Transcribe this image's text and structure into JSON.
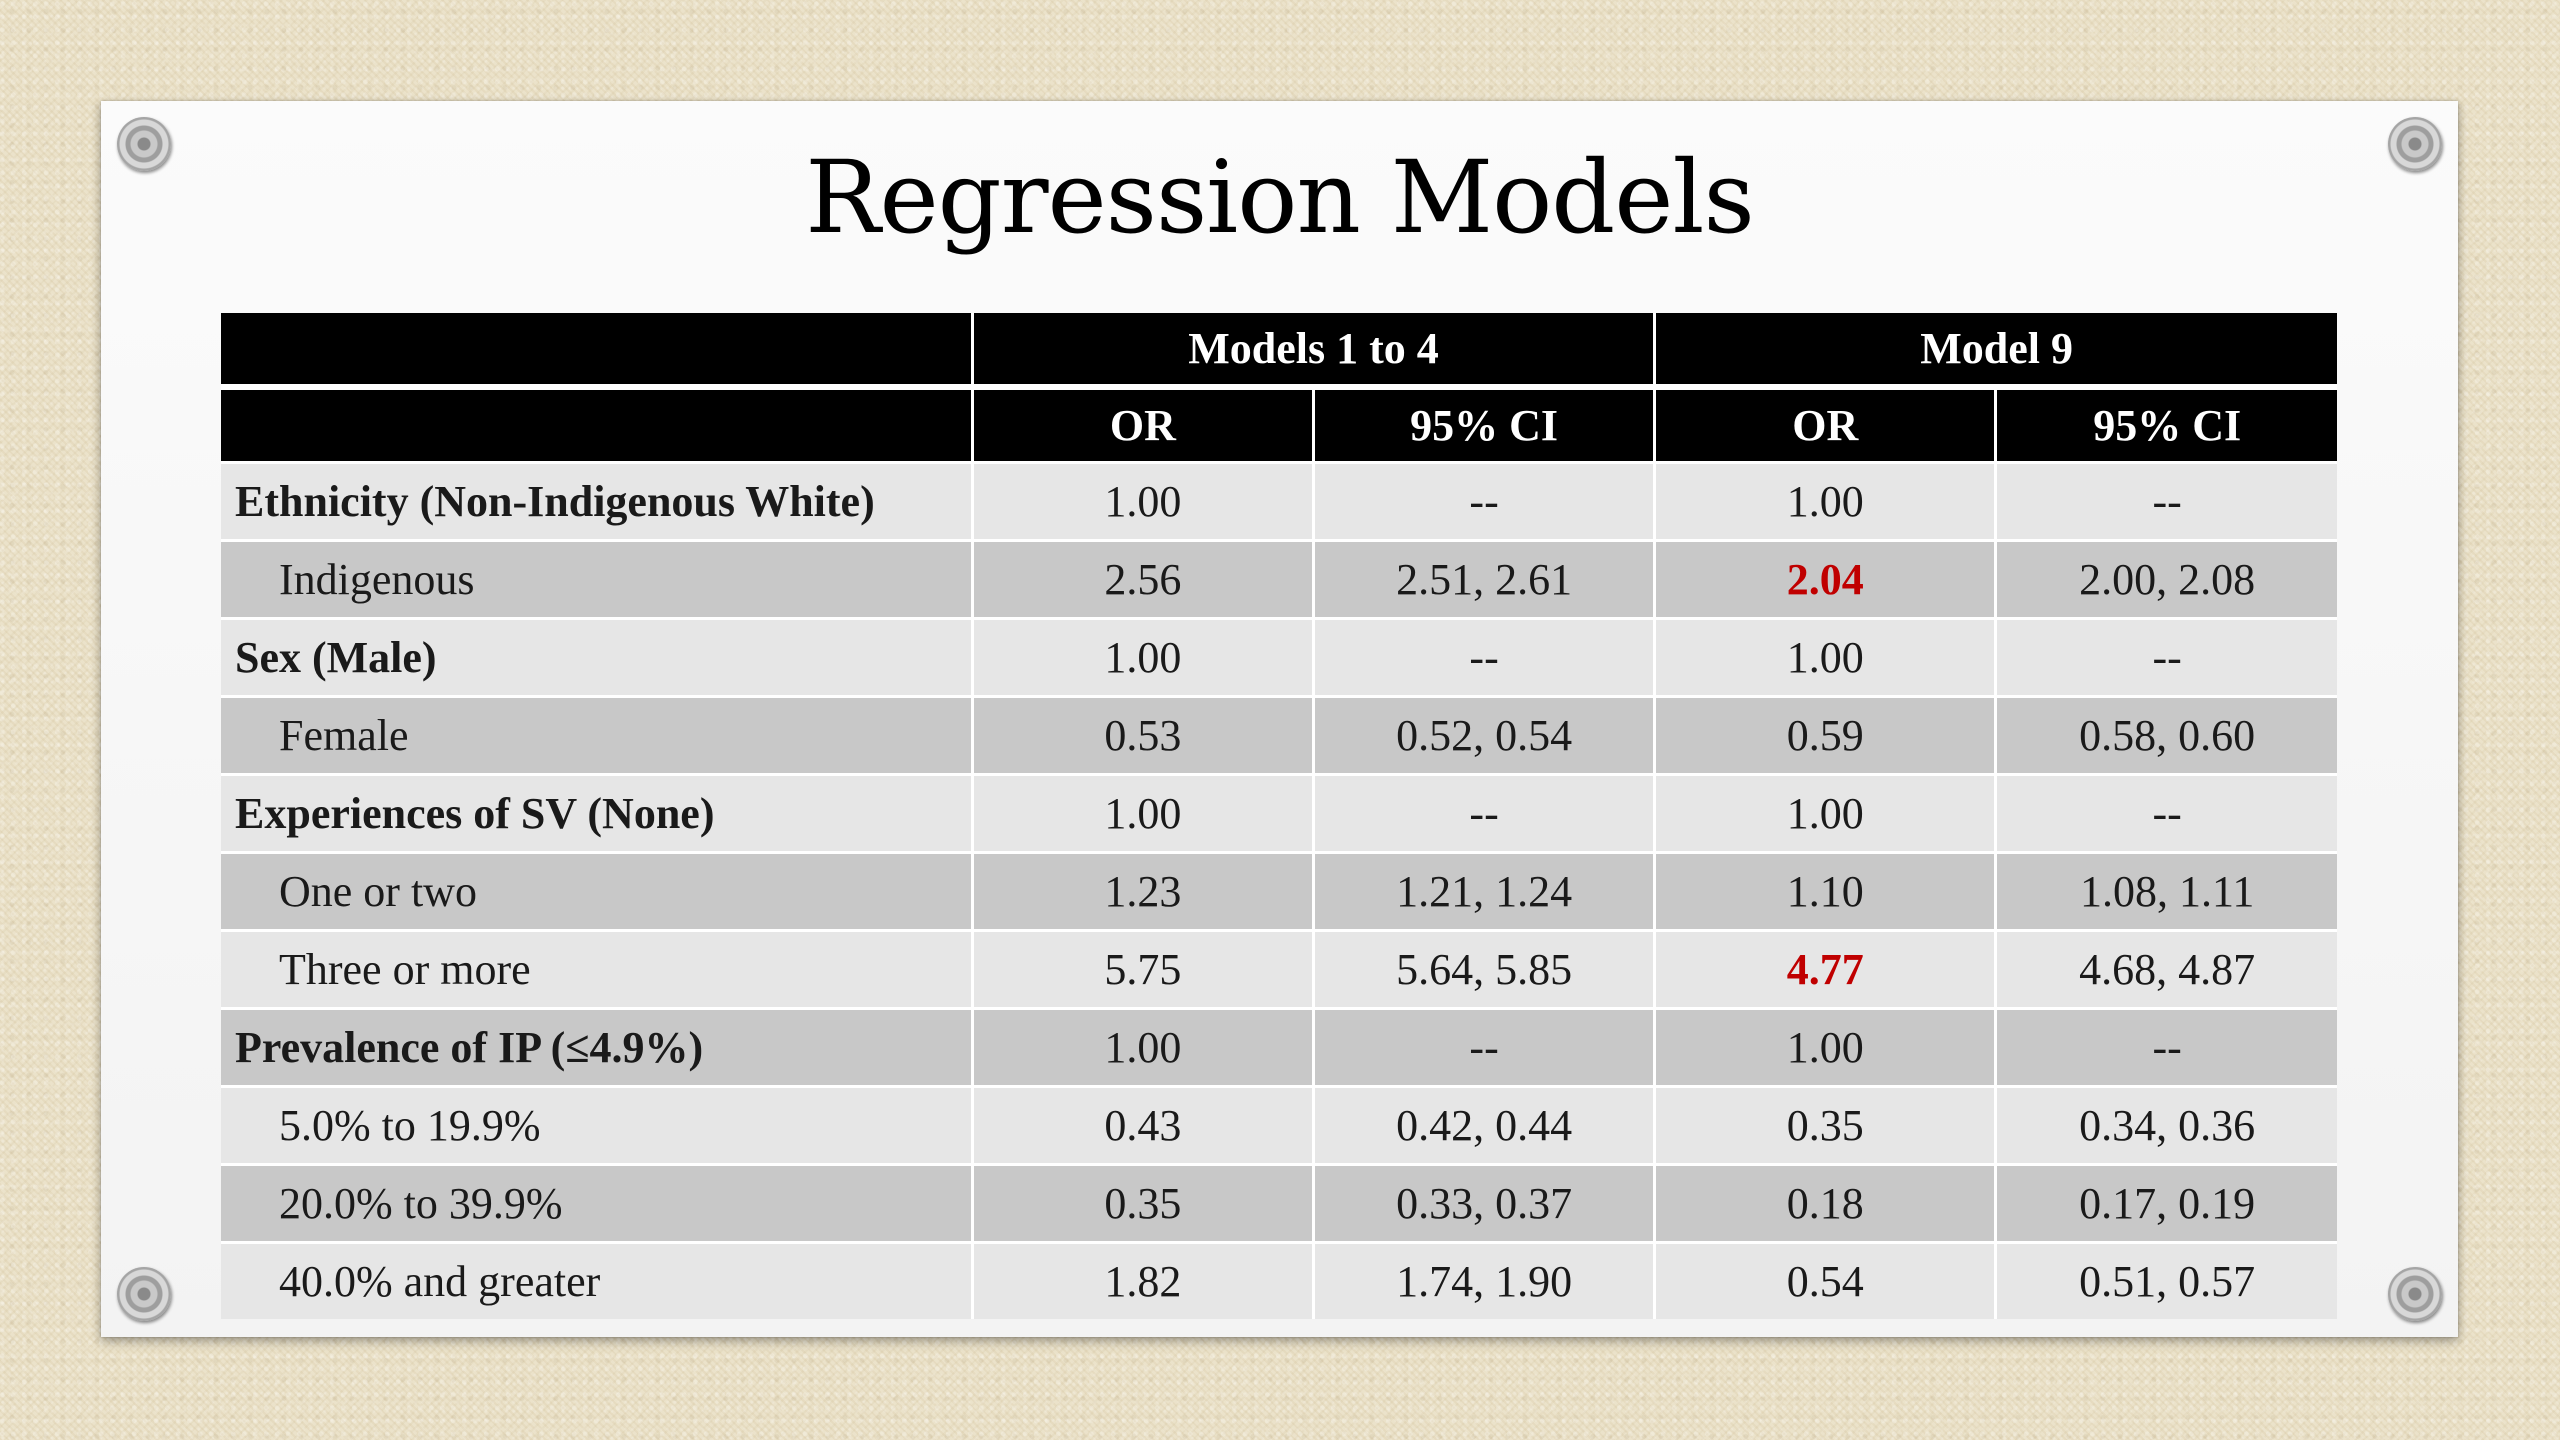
{
  "slide": {
    "title": "Regression Models"
  },
  "table": {
    "group_headers": [
      "Models 1 to 4",
      "Model 9"
    ],
    "sub_headers": [
      "OR",
      "95% CI",
      "OR",
      "95% CI"
    ],
    "highlight_color": "#c00000",
    "rows": [
      {
        "label": "Ethnicity (Non-Indigenous White)",
        "kind": "head",
        "m1_or": "1.00",
        "m1_ci": "--",
        "m9_or": "1.00",
        "m9_ci": "--"
      },
      {
        "label": "Indigenous",
        "kind": "sub",
        "m1_or": "2.56",
        "m1_ci": "2.51, 2.61",
        "m9_or": "2.04",
        "m9_ci": "2.00, 2.08",
        "highlight": "m9_or"
      },
      {
        "label": "Sex (Male)",
        "kind": "head",
        "m1_or": "1.00",
        "m1_ci": "--",
        "m9_or": "1.00",
        "m9_ci": "--"
      },
      {
        "label": "Female",
        "kind": "sub",
        "m1_or": "0.53",
        "m1_ci": "0.52, 0.54",
        "m9_or": "0.59",
        "m9_ci": "0.58, 0.60"
      },
      {
        "label": "Experiences of SV (None)",
        "kind": "head",
        "m1_or": "1.00",
        "m1_ci": "--",
        "m9_or": "1.00",
        "m9_ci": "--"
      },
      {
        "label": "One or two",
        "kind": "sub",
        "m1_or": "1.23",
        "m1_ci": "1.21, 1.24",
        "m9_or": "1.10",
        "m9_ci": "1.08, 1.11"
      },
      {
        "label": "Three or more",
        "kind": "sub",
        "m1_or": "5.75",
        "m1_ci": "5.64, 5.85",
        "m9_or": "4.77",
        "m9_ci": "4.68, 4.87",
        "highlight": "m9_or"
      },
      {
        "label": "Prevalence of IP (≤4.9%)",
        "kind": "head",
        "m1_or": "1.00",
        "m1_ci": "--",
        "m9_or": "1.00",
        "m9_ci": "--"
      },
      {
        "label": "5.0% to 19.9%",
        "kind": "sub",
        "m1_or": "0.43",
        "m1_ci": "0.42, 0.44",
        "m9_or": "0.35",
        "m9_ci": "0.34, 0.36"
      },
      {
        "label": "20.0% to 39.9%",
        "kind": "sub",
        "m1_or": "0.35",
        "m1_ci": "0.33, 0.37",
        "m9_or": "0.18",
        "m9_ci": "0.17, 0.19"
      },
      {
        "label": "40.0% and greater",
        "kind": "sub",
        "m1_or": "1.82",
        "m1_ci": "1.74, 1.90",
        "m9_or": "0.54",
        "m9_ci": "0.51, 0.57"
      }
    ]
  }
}
